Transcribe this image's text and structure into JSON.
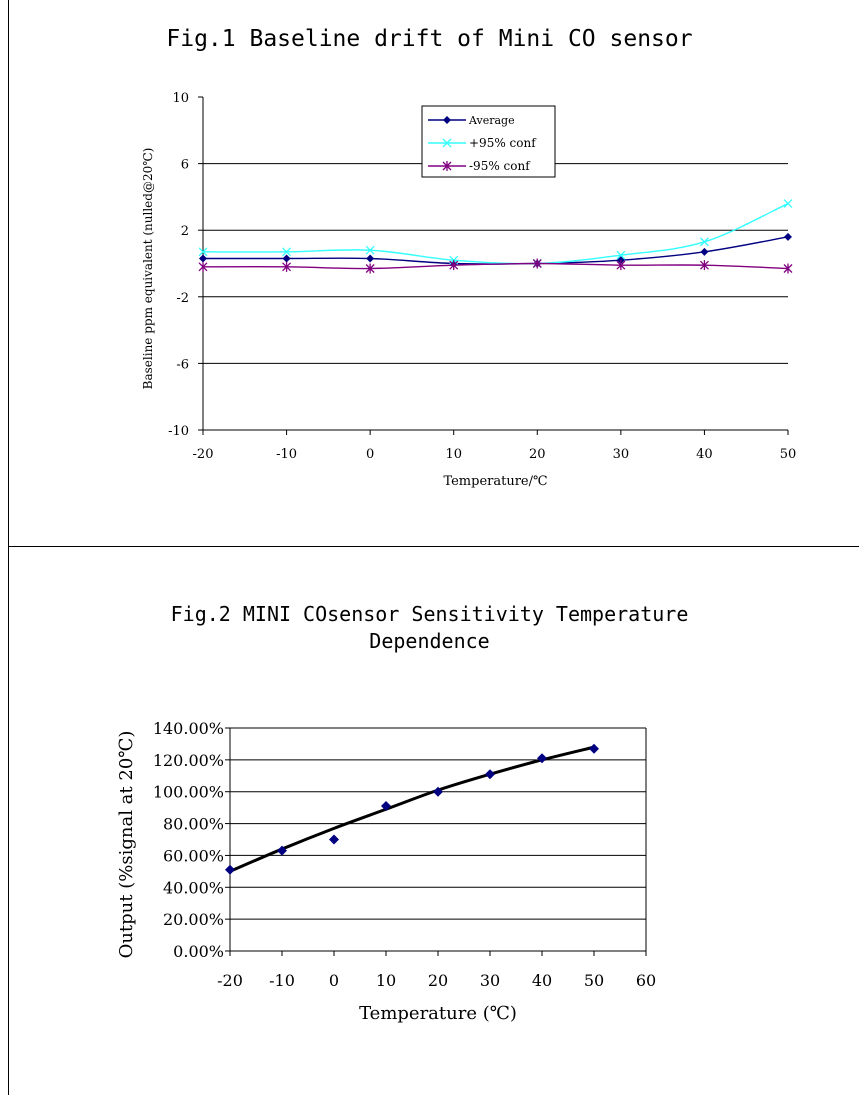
{
  "figures": {
    "fig1_title": "Fig.1 Baseline drift of Mini CO sensor",
    "fig2_title_line1": "Fig.2 MINI COsensor Sensitivity Temperature",
    "fig2_title_line2": "Dependence"
  },
  "chart_data": [
    {
      "type": "line",
      "title": "Fig.1 Baseline drift of Mini CO sensor",
      "xlabel": "Temperature/℃",
      "ylabel": "Baseline ppm equivalent (nulled@20℃)",
      "x": [
        -20,
        -10,
        0,
        10,
        20,
        30,
        40,
        50
      ],
      "xlim": [
        -20,
        50
      ],
      "ylim": [
        -10,
        10
      ],
      "x_ticks": [
        "-20",
        "-10",
        "0",
        "10",
        "20",
        "30",
        "40",
        "50"
      ],
      "y_ticks": [
        "10",
        "6",
        "2",
        "-2",
        "-6",
        "-10"
      ],
      "series": [
        {
          "name": "Average",
          "color": "#000080",
          "marker": "diamond",
          "values": [
            0.3,
            0.3,
            0.3,
            0.0,
            0.0,
            0.2,
            0.7,
            1.6
          ]
        },
        {
          "name": "+95% conf",
          "color": "#33ffff",
          "marker": "x",
          "values": [
            0.7,
            0.7,
            0.8,
            0.2,
            0.0,
            0.5,
            1.3,
            3.6
          ]
        },
        {
          "name": "-95% conf",
          "color": "#800080",
          "marker": "star",
          "values": [
            -0.2,
            -0.2,
            -0.3,
            -0.1,
            0.0,
            -0.1,
            -0.1,
            -0.3
          ]
        }
      ],
      "grid": "horizontal",
      "legend_position": "top-center"
    },
    {
      "type": "scatter",
      "title": "Fig.2 MINI COsensor Sensitivity Temperature Dependence",
      "xlabel": "Temperature (℃)",
      "ylabel": "Output (%signal at 20℃)",
      "xlim": [
        -20,
        60
      ],
      "ylim": [
        0,
        140
      ],
      "x_ticks": [
        "-20",
        "-10",
        "0",
        "10",
        "20",
        "30",
        "40",
        "50",
        "60"
      ],
      "y_ticks": [
        "140.00%",
        "120.00%",
        "100.00%",
        "80.00%",
        "60.00%",
        "40.00%",
        "20.00%",
        "0.00%"
      ],
      "points": {
        "color": "#000080",
        "marker": "diamond",
        "x": [
          -20,
          -10,
          0,
          10,
          20,
          30,
          40,
          50
        ],
        "y": [
          51,
          63,
          70,
          91,
          100,
          111,
          121,
          127
        ]
      },
      "trendline": {
        "color": "#000000",
        "x": [
          -20,
          -10,
          0,
          10,
          20,
          30,
          40,
          50
        ],
        "y": [
          50,
          64,
          77,
          89,
          101,
          111,
          120,
          128
        ]
      },
      "grid": "horizontal"
    }
  ]
}
